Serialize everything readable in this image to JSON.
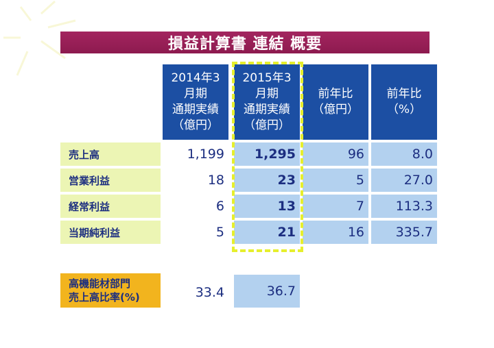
{
  "title": "損益計算書 連結 概要",
  "headers": [
    "2014年3\n月期\n通期実績\n（億円）",
    "2015年3\n月期\n通期実績\n（億円）",
    "前年比\n（億円）",
    "前年比\n（%）"
  ],
  "rows": [
    {
      "label": "売上高",
      "fy2014": "1,199",
      "fy2015": "1,295",
      "yoy_oku": "96",
      "yoy_pct": "8.0"
    },
    {
      "label": "営業利益",
      "fy2014": "18",
      "fy2015": "23",
      "yoy_oku": "5",
      "yoy_pct": "27.0"
    },
    {
      "label": "経常利益",
      "fy2014": "6",
      "fy2015": "13",
      "yoy_oku": "7",
      "yoy_pct": "113.3"
    },
    {
      "label": "当期純利益",
      "fy2014": "5",
      "fy2015": "21",
      "yoy_oku": "16",
      "yoy_pct": "335.7"
    }
  ],
  "ratio": {
    "label_line1": "高機能材部門",
    "label_line2": "売上高比率(%)",
    "fy2014": "33.4",
    "fy2015": "36.7"
  },
  "colors": {
    "title_bg": "#8d1a4f",
    "header_bg": "#1c4fa3",
    "row_label_bg": "#ecf5b4",
    "value_bg": "#b3d1ef",
    "highlight": "#e6ef2d",
    "ratio_label_bg": "#f2b41e",
    "text": "#1c2e80"
  }
}
